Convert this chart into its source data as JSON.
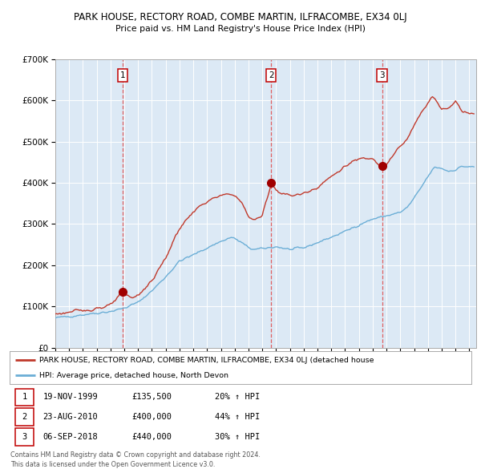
{
  "title": "PARK HOUSE, RECTORY ROAD, COMBE MARTIN, ILFRACOMBE, EX34 0LJ",
  "subtitle": "Price paid vs. HM Land Registry's House Price Index (HPI)",
  "legend_line1": "PARK HOUSE, RECTORY ROAD, COMBE MARTIN, ILFRACOMBE, EX34 0LJ (detached house",
  "legend_line2": "HPI: Average price, detached house, North Devon",
  "footer1": "Contains HM Land Registry data © Crown copyright and database right 2024.",
  "footer2": "This data is licensed under the Open Government Licence v3.0.",
  "trans_years": [
    1999.88,
    2010.64,
    2018.68
  ],
  "trans_prices": [
    135500,
    400000,
    440000
  ],
  "trans_nums": [
    1,
    2,
    3
  ],
  "trans_dates": [
    "19-NOV-1999",
    "23-AUG-2010",
    "06-SEP-2018"
  ],
  "trans_price_strs": [
    "£135,500",
    "£400,000",
    "£440,000"
  ],
  "trans_pct_strs": [
    "20% ↑ HPI",
    "44% ↑ HPI",
    "30% ↑ HPI"
  ],
  "hpi_color": "#6baed6",
  "price_color": "#c0392b",
  "dot_color": "#a00000",
  "vline_color": "#e06060",
  "plot_bg_color": "#dce9f5",
  "ylim": [
    0,
    700000
  ],
  "yticks": [
    0,
    100000,
    200000,
    300000,
    400000,
    500000,
    600000,
    700000
  ],
  "xlim_start": 1995.0,
  "xlim_end": 2025.5,
  "hpi_anchors": [
    [
      1995.0,
      72000
    ],
    [
      1996.0,
      76000
    ],
    [
      1997.0,
      80000
    ],
    [
      1998.0,
      84000
    ],
    [
      1999.0,
      88000
    ],
    [
      2000.0,
      96000
    ],
    [
      2001.0,
      110000
    ],
    [
      2002.0,
      138000
    ],
    [
      2003.0,
      172000
    ],
    [
      2004.0,
      210000
    ],
    [
      2005.0,
      225000
    ],
    [
      2006.0,
      242000
    ],
    [
      2007.0,
      258000
    ],
    [
      2007.8,
      268000
    ],
    [
      2008.5,
      255000
    ],
    [
      2009.0,
      242000
    ],
    [
      2009.5,
      238000
    ],
    [
      2010.0,
      240000
    ],
    [
      2011.0,
      245000
    ],
    [
      2012.0,
      238000
    ],
    [
      2013.0,
      242000
    ],
    [
      2014.0,
      255000
    ],
    [
      2015.0,
      268000
    ],
    [
      2016.0,
      282000
    ],
    [
      2017.0,
      298000
    ],
    [
      2018.0,
      312000
    ],
    [
      2019.0,
      320000
    ],
    [
      2020.0,
      328000
    ],
    [
      2020.5,
      340000
    ],
    [
      2021.0,
      362000
    ],
    [
      2021.5,
      388000
    ],
    [
      2022.0,
      415000
    ],
    [
      2022.5,
      438000
    ],
    [
      2023.0,
      435000
    ],
    [
      2023.5,
      428000
    ],
    [
      2024.0,
      432000
    ],
    [
      2024.5,
      440000
    ],
    [
      2025.2,
      438000
    ]
  ],
  "price_anchors": [
    [
      1995.0,
      82000
    ],
    [
      1996.0,
      86000
    ],
    [
      1997.0,
      90000
    ],
    [
      1998.0,
      96000
    ],
    [
      1999.0,
      102000
    ],
    [
      1999.88,
      135500
    ],
    [
      2000.5,
      120000
    ],
    [
      2001.0,
      128000
    ],
    [
      2002.0,
      162000
    ],
    [
      2003.0,
      218000
    ],
    [
      2004.0,
      290000
    ],
    [
      2005.0,
      330000
    ],
    [
      2006.0,
      355000
    ],
    [
      2007.0,
      368000
    ],
    [
      2007.8,
      375000
    ],
    [
      2008.5,
      352000
    ],
    [
      2009.0,
      318000
    ],
    [
      2009.5,
      310000
    ],
    [
      2010.0,
      320000
    ],
    [
      2010.64,
      400000
    ],
    [
      2011.0,
      382000
    ],
    [
      2012.0,
      368000
    ],
    [
      2013.0,
      374000
    ],
    [
      2014.0,
      390000
    ],
    [
      2015.0,
      415000
    ],
    [
      2016.0,
      440000
    ],
    [
      2017.0,
      458000
    ],
    [
      2018.0,
      460000
    ],
    [
      2018.68,
      440000
    ],
    [
      2019.0,
      445000
    ],
    [
      2019.5,
      468000
    ],
    [
      2020.0,
      488000
    ],
    [
      2020.5,
      505000
    ],
    [
      2021.0,
      538000
    ],
    [
      2021.5,
      570000
    ],
    [
      2022.0,
      595000
    ],
    [
      2022.3,
      612000
    ],
    [
      2022.8,
      588000
    ],
    [
      2023.0,
      578000
    ],
    [
      2023.5,
      582000
    ],
    [
      2024.0,
      598000
    ],
    [
      2024.5,
      575000
    ],
    [
      2025.2,
      568000
    ]
  ]
}
